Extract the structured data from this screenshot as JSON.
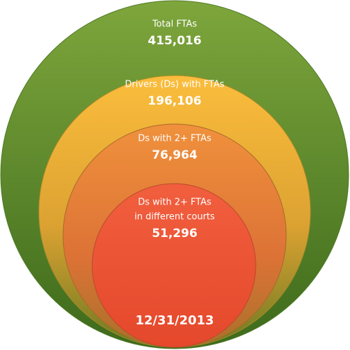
{
  "nodes": [
    {
      "label": [
        "Total FTAs"
      ],
      "value": "415,016"
    },
    {
      "label": [
        "Drivers (Ds) with FTAs"
      ],
      "value": "196,106"
    },
    {
      "label": [
        "Ds with 2+ FTAs"
      ],
      "value": "76,964"
    },
    {
      "label": [
        "Ds with 2+ FTAs",
        "in different courts"
      ],
      "value": "51,296"
    }
  ],
  "date": "12/31/2013"
}
